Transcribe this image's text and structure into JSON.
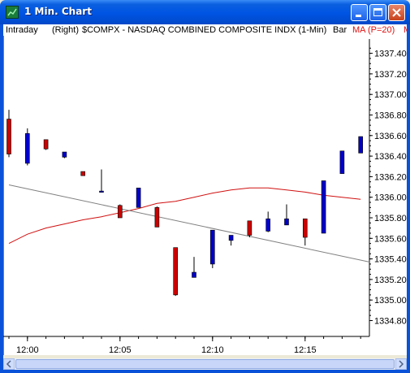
{
  "window": {
    "title": "1 Min. Chart",
    "icon": "chart-app-icon",
    "controls": [
      "minimize-icon",
      "maximize-icon",
      "close-icon"
    ]
  },
  "header": {
    "interval": "Intraday",
    "scale": "(Right)",
    "symbol": "$COMPX - NASDAQ COMBINED COMPOSITE INDX (1-Min)",
    "style": "Bar",
    "indicator": "MA (P=20)",
    "indicator_cut": "M"
  },
  "colors": {
    "up": "#0000cc",
    "down": "#cc0000",
    "ma_red": "#d01010",
    "trend_gray": "#808080",
    "background": "#ffffff"
  },
  "chart_data": {
    "type": "candlestick",
    "ylim": [
      1334.7,
      1337.5
    ],
    "y_ticks": [
      "1337.40",
      "1337.20",
      "1337.00",
      "1336.80",
      "1336.60",
      "1336.40",
      "1336.20",
      "1336.00",
      "1335.80",
      "1335.60",
      "1335.40",
      "1335.20",
      "1335.00",
      "1334.80"
    ],
    "x_ticks": [
      {
        "label": "12:00",
        "minute": 1
      },
      {
        "label": "12:05",
        "minute": 6
      },
      {
        "label": "12:10",
        "minute": 11
      },
      {
        "label": "12:15",
        "minute": 16
      }
    ],
    "bars": [
      {
        "minute": 0,
        "open": 1336.76,
        "high": 1336.85,
        "low": 1336.39,
        "close": 1336.42
      },
      {
        "minute": 1,
        "open": 1336.33,
        "high": 1336.67,
        "low": 1336.31,
        "close": 1336.62
      },
      {
        "minute": 2,
        "open": 1336.56,
        "high": 1336.56,
        "low": 1336.46,
        "close": 1336.47
      },
      {
        "minute": 3,
        "open": 1336.39,
        "high": 1336.44,
        "low": 1336.38,
        "close": 1336.44
      },
      {
        "minute": 4,
        "open": 1336.25,
        "high": 1336.25,
        "low": 1336.21,
        "close": 1336.21
      },
      {
        "minute": 5,
        "open": 1336.06,
        "high": 1336.27,
        "low": 1336.05,
        "close": 1336.06
      },
      {
        "minute": 6,
        "open": 1335.92,
        "high": 1335.93,
        "low": 1335.8,
        "close": 1335.8
      },
      {
        "minute": 7,
        "open": 1335.9,
        "high": 1336.09,
        "low": 1335.9,
        "close": 1336.09
      },
      {
        "minute": 8,
        "open": 1335.9,
        "high": 1335.91,
        "low": 1335.71,
        "close": 1335.71
      },
      {
        "minute": 9,
        "open": 1335.51,
        "high": 1335.51,
        "low": 1335.04,
        "close": 1335.05
      },
      {
        "minute": 10,
        "open": 1335.22,
        "high": 1335.42,
        "low": 1335.22,
        "close": 1335.27
      },
      {
        "minute": 11,
        "open": 1335.35,
        "high": 1335.68,
        "low": 1335.31,
        "close": 1335.68
      },
      {
        "minute": 12,
        "open": 1335.58,
        "high": 1335.63,
        "low": 1335.53,
        "close": 1335.63
      },
      {
        "minute": 13,
        "open": 1335.77,
        "high": 1335.77,
        "low": 1335.61,
        "close": 1335.63
      },
      {
        "minute": 14,
        "open": 1335.67,
        "high": 1335.86,
        "low": 1335.66,
        "close": 1335.79
      },
      {
        "minute": 15,
        "open": 1335.73,
        "high": 1335.93,
        "low": 1335.73,
        "close": 1335.79
      },
      {
        "minute": 16,
        "open": 1335.79,
        "high": 1335.79,
        "low": 1335.53,
        "close": 1335.61
      },
      {
        "minute": 17,
        "open": 1335.65,
        "high": 1336.16,
        "low": 1335.65,
        "close": 1336.16
      },
      {
        "minute": 18,
        "open": 1336.23,
        "high": 1336.45,
        "low": 1336.23,
        "close": 1336.45
      },
      {
        "minute": 19,
        "open": 1336.43,
        "high": 1336.59,
        "low": 1336.43,
        "close": 1336.59
      }
    ],
    "series": [
      {
        "name": "MA (P=20)",
        "color": "#d01010",
        "points": [
          {
            "minute": 0,
            "value": 1335.55
          },
          {
            "minute": 1,
            "value": 1335.64
          },
          {
            "minute": 2,
            "value": 1335.7
          },
          {
            "minute": 3,
            "value": 1335.74
          },
          {
            "minute": 4,
            "value": 1335.78
          },
          {
            "minute": 5,
            "value": 1335.81
          },
          {
            "minute": 6,
            "value": 1335.85
          },
          {
            "minute": 7,
            "value": 1335.89
          },
          {
            "minute": 8,
            "value": 1335.94
          },
          {
            "minute": 9,
            "value": 1335.96
          },
          {
            "minute": 10,
            "value": 1336.0
          },
          {
            "minute": 11,
            "value": 1336.04
          },
          {
            "minute": 12,
            "value": 1336.07
          },
          {
            "minute": 13,
            "value": 1336.09
          },
          {
            "minute": 14,
            "value": 1336.09
          },
          {
            "minute": 15,
            "value": 1336.07
          },
          {
            "minute": 16,
            "value": 1336.05
          },
          {
            "minute": 17,
            "value": 1336.02
          },
          {
            "minute": 18,
            "value": 1336.0
          },
          {
            "minute": 19,
            "value": 1335.98
          }
        ]
      },
      {
        "name": "",
        "color": "#808080",
        "points": [
          {
            "minute": 0,
            "value": 1336.12
          },
          {
            "minute": 19,
            "value": 1335.37
          }
        ]
      }
    ]
  }
}
